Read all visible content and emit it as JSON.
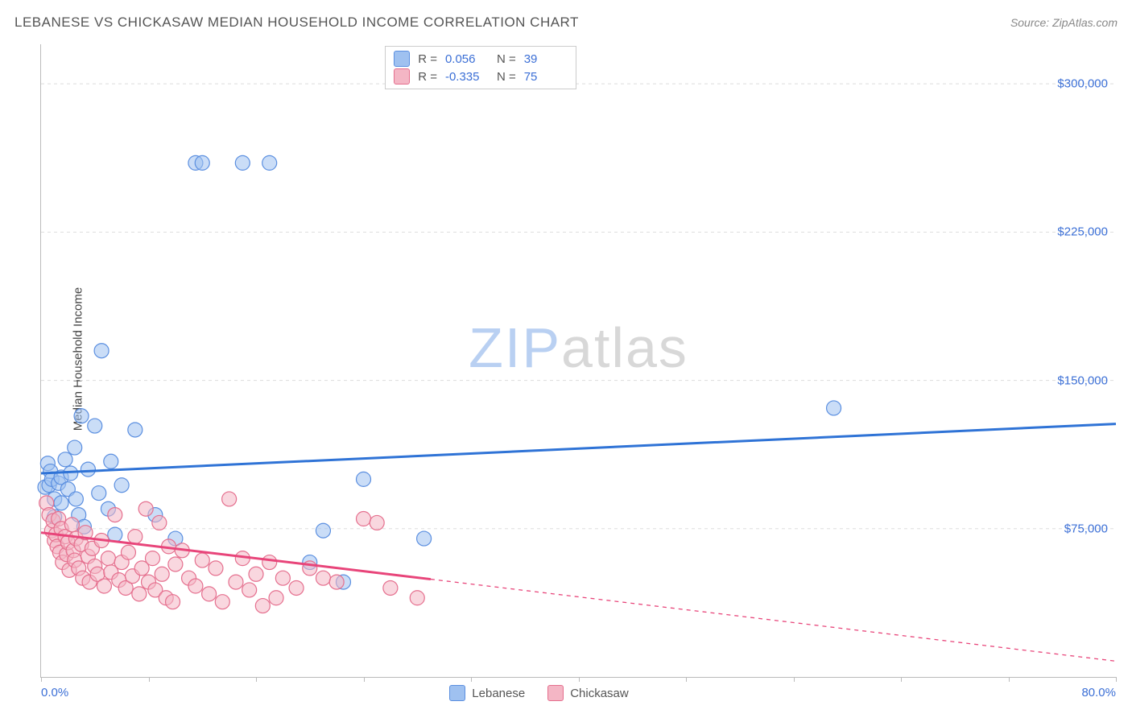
{
  "header": {
    "title": "LEBANESE VS CHICKASAW MEDIAN HOUSEHOLD INCOME CORRELATION CHART",
    "source": "Source: ZipAtlas.com"
  },
  "chart": {
    "type": "scatter",
    "y_axis_label": "Median Household Income",
    "x_min_label": "0.0%",
    "x_max_label": "80.0%",
    "xlim": [
      0,
      80
    ],
    "ylim": [
      0,
      320000
    ],
    "y_ticks": [
      75000,
      150000,
      225000,
      300000
    ],
    "y_tick_labels": [
      "$75,000",
      "$150,000",
      "$225,000",
      "$300,000"
    ],
    "x_tick_positions": [
      0,
      8,
      16,
      24,
      32,
      40,
      48,
      56,
      64,
      72,
      80
    ],
    "background_color": "#ffffff",
    "grid_color": "#dddddd",
    "grid_dash": "4,4",
    "axis_color": "#bbbbbb",
    "tick_label_color": "#3b6fd6",
    "tick_fontsize": 15,
    "axis_label_fontsize": 15,
    "title_fontsize": 17,
    "title_color": "#555555",
    "watermark": {
      "text_a": "ZIP",
      "text_b": "atlas",
      "color_a": "#b9d0f2",
      "color_b": "#d8d8d8",
      "fontsize": 70
    },
    "series": [
      {
        "name": "Lebanese",
        "marker_fill": "#9fc1f0",
        "marker_stroke": "#5b8fe0",
        "marker_opacity": 0.55,
        "marker_radius": 9,
        "trend": {
          "color": "#2f73d6",
          "width": 3,
          "y_at_xmin": 103000,
          "y_at_xmax": 128000,
          "dash_after_x": null
        },
        "stats": {
          "R": "0.056",
          "N": "39"
        },
        "points": [
          [
            0.3,
            96000
          ],
          [
            0.5,
            108000
          ],
          [
            0.6,
            97000
          ],
          [
            0.7,
            104000
          ],
          [
            0.8,
            100000
          ],
          [
            1.0,
            90000
          ],
          [
            1.0,
            81000
          ],
          [
            1.3,
            98000
          ],
          [
            1.5,
            101000
          ],
          [
            1.5,
            88000
          ],
          [
            1.8,
            110000
          ],
          [
            2.0,
            95000
          ],
          [
            2.2,
            103000
          ],
          [
            2.5,
            116000
          ],
          [
            2.6,
            90000
          ],
          [
            2.8,
            82000
          ],
          [
            3.0,
            132000
          ],
          [
            3.2,
            76000
          ],
          [
            3.5,
            105000
          ],
          [
            4.0,
            127000
          ],
          [
            4.3,
            93000
          ],
          [
            4.5,
            165000
          ],
          [
            5.0,
            85000
          ],
          [
            5.2,
            109000
          ],
          [
            5.5,
            72000
          ],
          [
            6.0,
            97000
          ],
          [
            7.0,
            125000
          ],
          [
            8.5,
            82000
          ],
          [
            10.0,
            70000
          ],
          [
            11.5,
            260000
          ],
          [
            12.0,
            260000
          ],
          [
            15.0,
            260000
          ],
          [
            17.0,
            260000
          ],
          [
            20.0,
            58000
          ],
          [
            21.0,
            74000
          ],
          [
            22.5,
            48000
          ],
          [
            24.0,
            100000
          ],
          [
            28.5,
            70000
          ],
          [
            59.0,
            136000
          ]
        ]
      },
      {
        "name": "Chickasaw",
        "marker_fill": "#f4b6c5",
        "marker_stroke": "#e56f8e",
        "marker_opacity": 0.55,
        "marker_radius": 9,
        "trend": {
          "color": "#e8457a",
          "width": 3,
          "y_at_xmin": 73000,
          "y_at_xmax": 8000,
          "dash_after_x": 29
        },
        "stats": {
          "R": "-0.335",
          "N": "75"
        },
        "points": [
          [
            0.4,
            88000
          ],
          [
            0.6,
            82000
          ],
          [
            0.8,
            74000
          ],
          [
            0.9,
            79000
          ],
          [
            1.0,
            69000
          ],
          [
            1.1,
            72000
          ],
          [
            1.2,
            66000
          ],
          [
            1.3,
            80000
          ],
          [
            1.4,
            63000
          ],
          [
            1.5,
            75000
          ],
          [
            1.6,
            58000
          ],
          [
            1.8,
            71000
          ],
          [
            1.9,
            62000
          ],
          [
            2.0,
            68000
          ],
          [
            2.1,
            54000
          ],
          [
            2.3,
            77000
          ],
          [
            2.4,
            64000
          ],
          [
            2.5,
            59000
          ],
          [
            2.6,
            70000
          ],
          [
            2.8,
            55000
          ],
          [
            3.0,
            67000
          ],
          [
            3.1,
            50000
          ],
          [
            3.3,
            73000
          ],
          [
            3.5,
            61000
          ],
          [
            3.6,
            48000
          ],
          [
            3.8,
            65000
          ],
          [
            4.0,
            56000
          ],
          [
            4.2,
            52000
          ],
          [
            4.5,
            69000
          ],
          [
            4.7,
            46000
          ],
          [
            5.0,
            60000
          ],
          [
            5.2,
            53000
          ],
          [
            5.5,
            82000
          ],
          [
            5.8,
            49000
          ],
          [
            6.0,
            58000
          ],
          [
            6.3,
            45000
          ],
          [
            6.5,
            63000
          ],
          [
            6.8,
            51000
          ],
          [
            7.0,
            71000
          ],
          [
            7.3,
            42000
          ],
          [
            7.5,
            55000
          ],
          [
            7.8,
            85000
          ],
          [
            8.0,
            48000
          ],
          [
            8.3,
            60000
          ],
          [
            8.5,
            44000
          ],
          [
            8.8,
            78000
          ],
          [
            9.0,
            52000
          ],
          [
            9.3,
            40000
          ],
          [
            9.5,
            66000
          ],
          [
            9.8,
            38000
          ],
          [
            10.0,
            57000
          ],
          [
            10.5,
            64000
          ],
          [
            11.0,
            50000
          ],
          [
            11.5,
            46000
          ],
          [
            12.0,
            59000
          ],
          [
            12.5,
            42000
          ],
          [
            13.0,
            55000
          ],
          [
            13.5,
            38000
          ],
          [
            14.0,
            90000
          ],
          [
            14.5,
            48000
          ],
          [
            15.0,
            60000
          ],
          [
            15.5,
            44000
          ],
          [
            16.0,
            52000
          ],
          [
            16.5,
            36000
          ],
          [
            17.0,
            58000
          ],
          [
            17.5,
            40000
          ],
          [
            18.0,
            50000
          ],
          [
            19.0,
            45000
          ],
          [
            20.0,
            55000
          ],
          [
            21.0,
            50000
          ],
          [
            22.0,
            48000
          ],
          [
            24.0,
            80000
          ],
          [
            25.0,
            78000
          ],
          [
            26.0,
            45000
          ],
          [
            28.0,
            40000
          ]
        ]
      }
    ],
    "stats_legend": {
      "border_color": "#cccccc",
      "fontsize": 15,
      "label_color": "#555555",
      "value_color": "#3b6fd6"
    },
    "series_legend": {
      "fontsize": 15,
      "color": "#555555"
    }
  }
}
